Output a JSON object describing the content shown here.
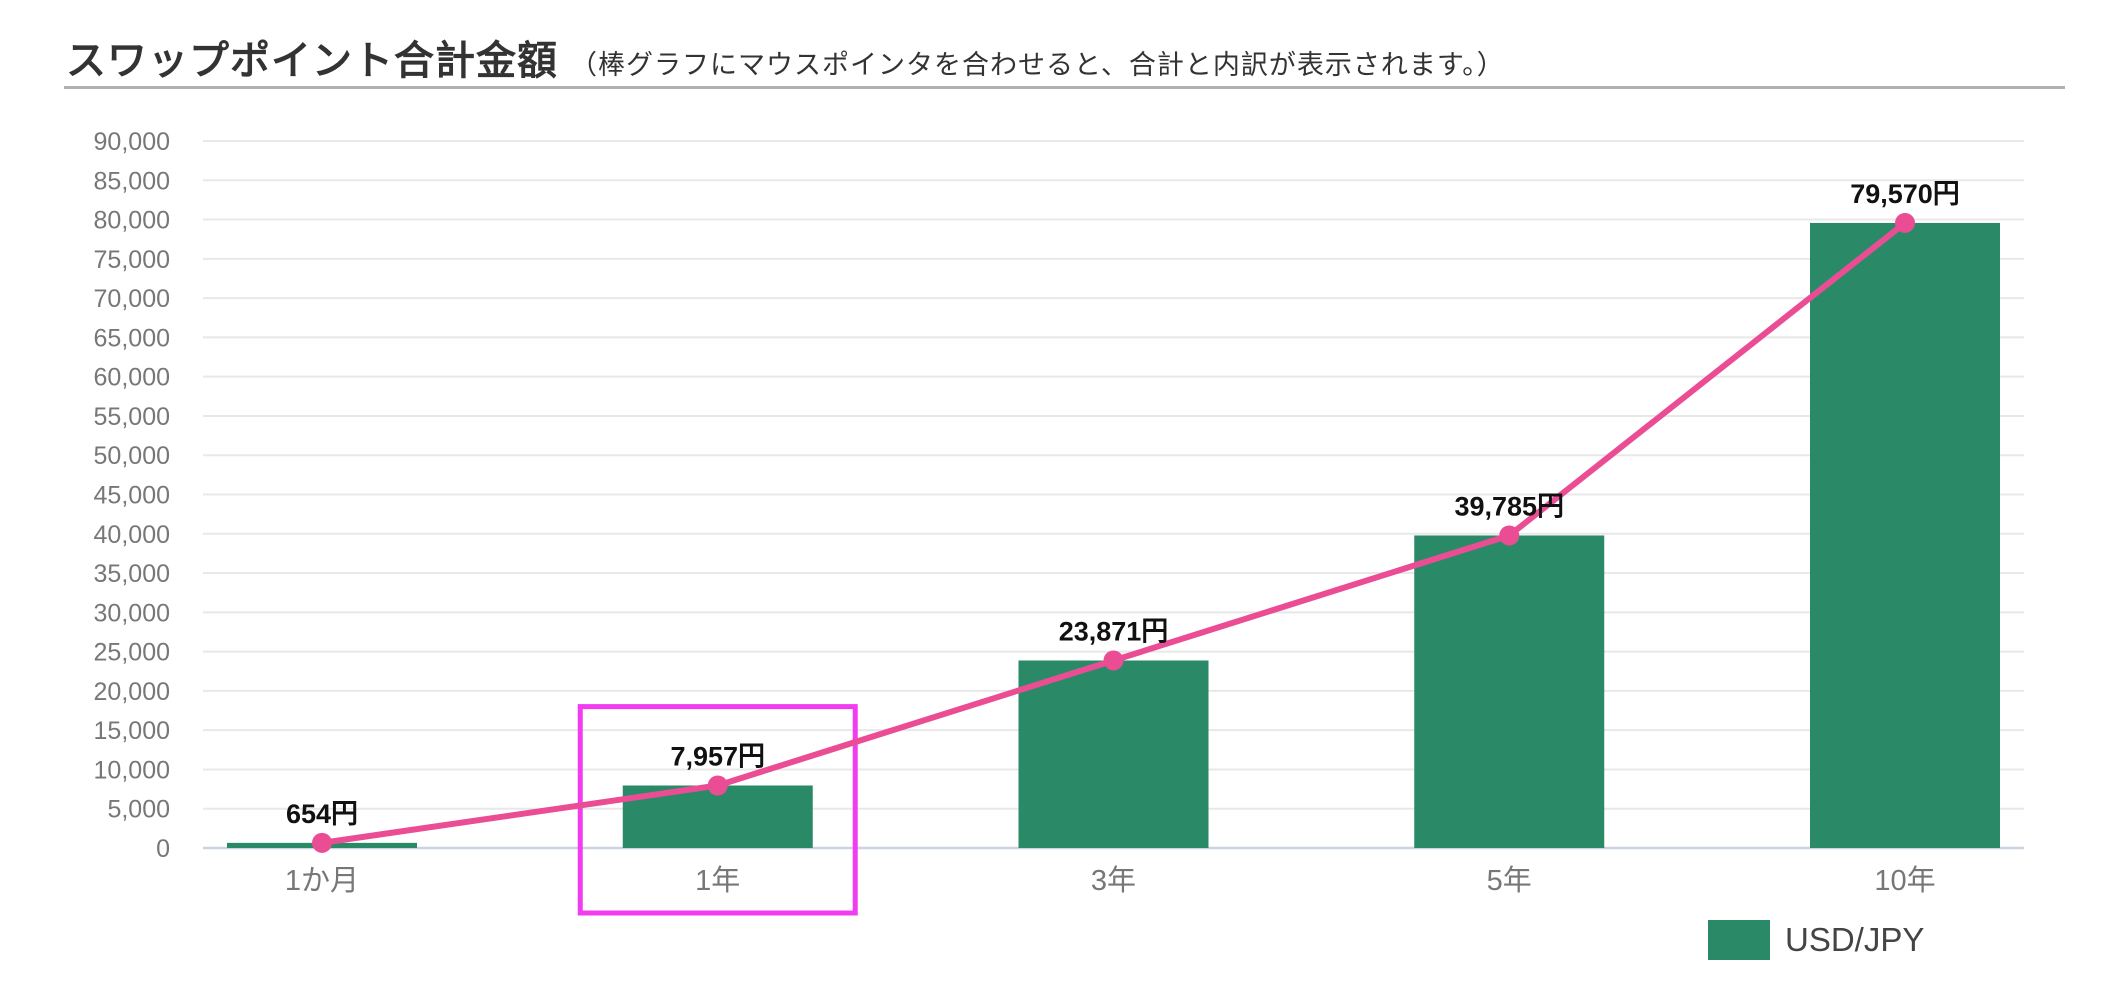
{
  "header": {
    "title": "スワップポイント合計金額",
    "subtitle": "（棒グラフにマウスポインタを合わせると、合計と内訳が表示されます。）"
  },
  "legend": {
    "label": "USD/JPY",
    "position": "bottom-right"
  },
  "colors": {
    "bar": "#2A8A68",
    "line": "#EB4D95",
    "marker": "#EB4D95",
    "highlight_box": "#F23CF2",
    "grid": "#E8E8E8",
    "baseline": "#C9D3E3",
    "tick_label": "#777777",
    "category_label": "#777777",
    "value_label": "#111111",
    "title_text": "#333333",
    "legend_text": "#444444",
    "divider": "#B0B0B0"
  },
  "chart_data": {
    "type": "bar",
    "title": "スワップポイント合計金額",
    "categories": [
      "1か月",
      "1年",
      "3年",
      "5年",
      "10年"
    ],
    "series": [
      {
        "name": "USD/JPY",
        "values": [
          654,
          7957,
          23871,
          39785,
          79570
        ]
      }
    ],
    "overlay_line": {
      "type": "line",
      "series": "USD/JPY",
      "values": [
        654,
        7957,
        23871,
        39785,
        79570
      ]
    },
    "value_labels": [
      "654円",
      "7,957円",
      "23,871円",
      "39,785円",
      "79,570円"
    ],
    "ylabel": "",
    "xlabel": "",
    "ylim": [
      0,
      90000
    ],
    "ytick_step": 5000,
    "ytick_labels": [
      "0",
      "5,000",
      "10,000",
      "15,000",
      "20,000",
      "25,000",
      "30,000",
      "35,000",
      "40,000",
      "45,000",
      "50,000",
      "55,000",
      "60,000",
      "65,000",
      "70,000",
      "75,000",
      "80,000",
      "85,000",
      "90,000"
    ],
    "grid": true,
    "legend_position": "bottom-right",
    "legend_entries": [
      "USD/JPY"
    ],
    "highlighted_category": "1年"
  }
}
